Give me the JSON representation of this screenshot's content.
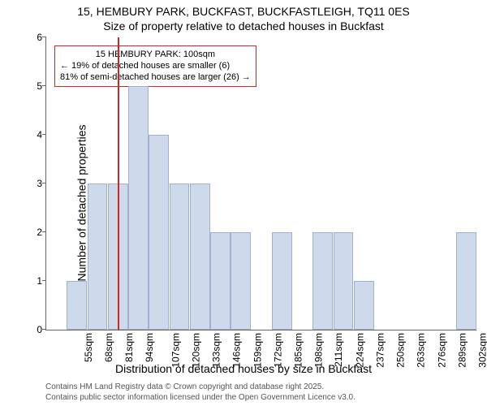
{
  "title": "15, HEMBURY PARK, BUCKFAST, BUCKFASTLEIGH, TQ11 0ES",
  "subtitle": "Size of property relative to detached houses in Buckfast",
  "ylabel": "Number of detached properties",
  "xlabel": "Distribution of detached houses by size in Buckfast",
  "footer_l1": "Contains HM Land Registry data © Crown copyright and database right 2025.",
  "footer_l2": "Contains public sector information licensed under the Open Government Licence v3.0.",
  "chart": {
    "type": "bar",
    "ylim": [
      0,
      6
    ],
    "ytick_step": 1,
    "bar_fill": "#cfd9ec",
    "bar_border": "#9fb0d0",
    "marker_color": "#c82828",
    "marker_x": 100,
    "plot_bg": "#ffffff",
    "axis_color": "#666666",
    "annotation": {
      "l1": "15 HEMBURY PARK: 100sqm",
      "l2": "← 19% of detached houses are smaller (6)",
      "l3": "81% of semi-detached houses are larger (26) →"
    },
    "x_start": 55,
    "x_step": 13,
    "x_count": 21,
    "x_unit": "sqm",
    "values": [
      0,
      1,
      3,
      3,
      5,
      4,
      3,
      3,
      2,
      2,
      0,
      2,
      0,
      2,
      2,
      1,
      0,
      0,
      0,
      0,
      2
    ]
  }
}
